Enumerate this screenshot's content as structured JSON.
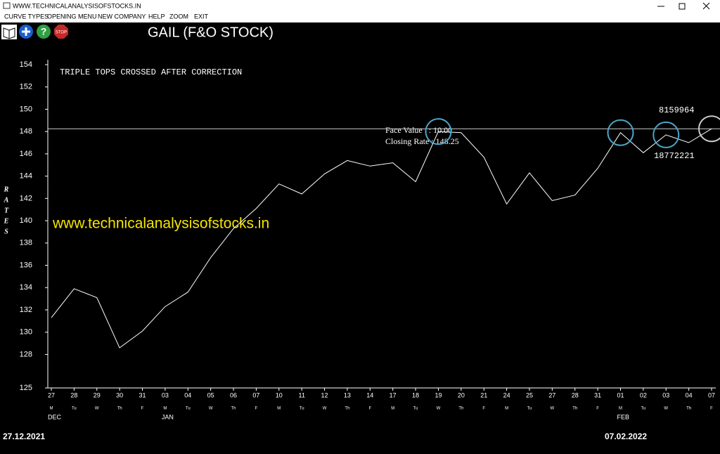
{
  "window": {
    "title": "WWW.TECHNICALANALYSISOFSTOCKS.IN",
    "menu": [
      "CURVE TYPES",
      "OPENING MENU",
      "NEW COMPANY",
      "HELP",
      "ZOOM",
      "EXIT"
    ]
  },
  "chart_data": {
    "type": "line",
    "title": "GAIL (F&O STOCK)",
    "annotation": "TRIPLE TOPS CROSSED AFTER CORRECTION",
    "face_value": "Face Value   : 10.00",
    "closing_rate": "Closing Rate : 148.25",
    "volume_labels": [
      "8159964",
      "18772221"
    ],
    "watermark": "www.technicalanalysisofstocks.in",
    "y_label": "RATES",
    "start_date": "27.12.2021",
    "end_date": "07.02.2022",
    "categories": [
      "27",
      "28",
      "29",
      "30",
      "31",
      "03",
      "04",
      "05",
      "06",
      "07",
      "10",
      "11",
      "12",
      "13",
      "14",
      "17",
      "18",
      "19",
      "20",
      "21",
      "24",
      "25",
      "27",
      "28",
      "31",
      "01",
      "02",
      "03",
      "04",
      "07"
    ],
    "weekdays": [
      "M",
      "Tu",
      "W",
      "Th",
      "F",
      "M",
      "Tu",
      "W",
      "Th",
      "F",
      "M",
      "Tu",
      "W",
      "Th",
      "F",
      "M",
      "Tu",
      "W",
      "Th",
      "F",
      "M",
      "Tu",
      "W",
      "Th",
      "F",
      "M",
      "Tu",
      "W",
      "Th",
      "F"
    ],
    "months": [
      "DEC",
      null,
      null,
      null,
      null,
      "JAN",
      null,
      null,
      null,
      null,
      null,
      null,
      null,
      null,
      null,
      null,
      null,
      null,
      null,
      null,
      null,
      null,
      null,
      null,
      null,
      "FEB",
      null,
      null,
      null,
      null
    ],
    "values": [
      131.3,
      133.9,
      133.1,
      128.6,
      130.1,
      132.3,
      133.6,
      136.7,
      139.3,
      141.1,
      143.3,
      142.4,
      144.2,
      145.4,
      144.9,
      145.2,
      143.5,
      148.0,
      147.9,
      145.7,
      141.5,
      144.3,
      141.8,
      142.3,
      144.7,
      147.9,
      146.1,
      147.7,
      147.0,
      148.25
    ],
    "color": "#ffffff",
    "hline": 148.25,
    "ylim": [
      125,
      154
    ],
    "yticks": [
      125,
      128,
      130,
      132,
      134,
      136,
      138,
      140,
      142,
      144,
      146,
      148,
      150,
      152,
      154
    ],
    "grid": false
  }
}
